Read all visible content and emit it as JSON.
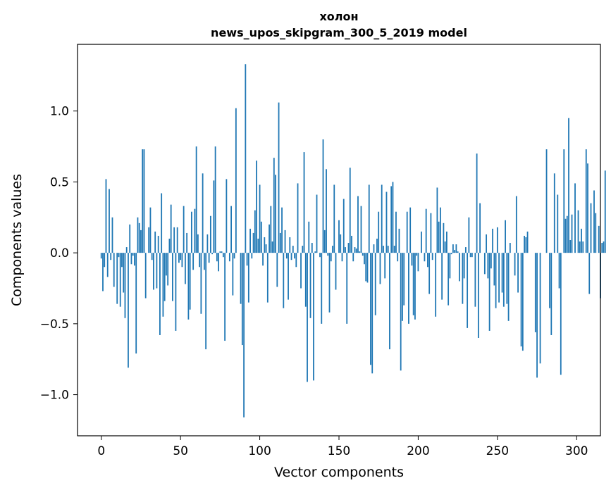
{
  "chart_data": {
    "type": "bar",
    "title": "холон",
    "subtitle": "news_upos_skipgram_300_5_2019 model",
    "xlabel": "Vector components",
    "ylabel": "Components values",
    "xlim": [
      -15,
      315
    ],
    "ylim": [
      -1.29,
      1.47
    ],
    "xticks": [
      0,
      50,
      100,
      150,
      200,
      250,
      300
    ],
    "xtick_labels": [
      "0",
      "50",
      "100",
      "150",
      "200",
      "250",
      "300"
    ],
    "yticks": [
      -1.0,
      -0.5,
      0.0,
      0.5,
      1.0
    ],
    "ytick_labels": [
      "−1.0",
      "−0.5",
      "0.0",
      "0.5",
      "1.0"
    ],
    "bar_color": "#1f77b4",
    "grid": false,
    "legend": "none",
    "values": [
      -0.04,
      -0.27,
      -0.1,
      0.52,
      -0.17,
      0.45,
      -0.05,
      0.25,
      -0.24,
      0.0,
      -0.36,
      -0.03,
      -0.38,
      -0.1,
      -0.28,
      -0.46,
      0.04,
      -0.81,
      0.2,
      -0.08,
      -0.02,
      -0.09,
      -0.71,
      0.25,
      0.21,
      0.16,
      0.73,
      0.73,
      -0.32,
      0.0,
      0.18,
      0.32,
      -0.05,
      -0.26,
      0.15,
      -0.25,
      0.12,
      -0.58,
      0.42,
      -0.45,
      -0.34,
      -0.16,
      -0.23,
      0.1,
      0.34,
      -0.34,
      0.18,
      -0.55,
      0.18,
      -0.07,
      -0.05,
      -0.1,
      0.33,
      -0.22,
      0.14,
      -0.47,
      -0.4,
      0.29,
      -0.12,
      0.31,
      0.75,
      0.13,
      -0.1,
      -0.43,
      0.56,
      -0.12,
      -0.68,
      0.13,
      -0.07,
      0.26,
      -0.01,
      0.51,
      0.75,
      -0.06,
      -0.13,
      0.01,
      0.01,
      -0.03,
      -0.62,
      0.52,
      0.0,
      -0.06,
      0.33,
      -0.3,
      -0.04,
      1.02,
      0.0,
      0.0,
      -0.36,
      -0.65,
      -1.16,
      1.33,
      -0.09,
      -0.35,
      0.17,
      -0.04,
      0.14,
      0.3,
      0.65,
      0.1,
      0.48,
      0.22,
      -0.09,
      0.11,
      0.06,
      -0.35,
      0.2,
      0.33,
      0.08,
      0.67,
      0.55,
      -0.24,
      1.06,
      0.14,
      0.32,
      -0.39,
      0.16,
      -0.04,
      -0.33,
      0.11,
      -0.05,
      0.05,
      -0.04,
      -0.1,
      0.49,
      0.0,
      -0.25,
      0.05,
      0.71,
      -0.38,
      -0.91,
      0.22,
      -0.46,
      0.07,
      -0.9,
      0.01,
      0.41,
      0.0,
      -0.03,
      -0.5,
      0.8,
      0.16,
      0.59,
      -0.02,
      -0.42,
      -0.06,
      0.05,
      0.48,
      -0.26,
      0.0,
      0.23,
      0.13,
      -0.06,
      0.38,
      0.04,
      -0.5,
      0.07,
      0.6,
      0.12,
      -0.06,
      0.04,
      0.03,
      0.4,
      0.01,
      0.33,
      -0.02,
      -0.08,
      -0.2,
      -0.21,
      0.48,
      -0.79,
      -0.85,
      0.06,
      -0.44,
      0.1,
      0.29,
      -0.22,
      0.48,
      0.05,
      -0.18,
      0.43,
      0.05,
      -0.68,
      0.47,
      0.5,
      0.05,
      0.29,
      -0.06,
      0.17,
      -0.83,
      -0.48,
      -0.37,
      0.0,
      0.29,
      -0.5,
      0.32,
      -0.09,
      -0.44,
      -0.47,
      -0.02,
      -0.13,
      0.0,
      0.15,
      0.0,
      -0.06,
      0.31,
      -0.1,
      -0.29,
      0.28,
      -0.05,
      0.0,
      -0.45,
      0.46,
      0.22,
      0.32,
      -0.33,
      0.21,
      0.08,
      0.15,
      -0.37,
      -0.18,
      -0.01,
      0.06,
      0.02,
      0.06,
      0.01,
      -0.2,
      0.0,
      -0.36,
      -0.18,
      0.04,
      -0.53,
      0.25,
      -0.03,
      -0.03,
      0.0,
      -0.38,
      0.7,
      -0.6,
      0.35,
      0.0,
      0.0,
      -0.15,
      0.13,
      -0.18,
      -0.55,
      -0.11,
      0.17,
      -0.23,
      -0.39,
      0.18,
      -0.35,
      0.0,
      -0.28,
      -0.38,
      0.23,
      -0.36,
      -0.48,
      0.07,
      0.0,
      0.0,
      -0.16,
      0.4,
      -0.28,
      0.0,
      -0.66,
      -0.69,
      0.12,
      0.11,
      0.15,
      0.0,
      0.0,
      0.0,
      0.0,
      -0.56,
      -0.88,
      0.0,
      -0.78,
      0.0,
      0.0,
      0.0,
      0.73,
      0.0,
      -0.39,
      -0.58,
      0.0,
      0.56,
      0.0,
      0.41,
      -0.25,
      -0.86,
      0.0,
      0.73,
      0.24,
      0.26,
      0.95,
      0.09,
      0.27,
      0.0,
      0.49,
      0.0,
      0.3,
      0.08,
      0.17,
      0.08,
      0.0,
      0.73,
      0.63,
      -0.29,
      0.35,
      0.0,
      0.44,
      0.28,
      0.0,
      0.19,
      -0.32,
      0.07,
      0.08,
      0.58
    ],
    "values_note_hidden": null
  }
}
